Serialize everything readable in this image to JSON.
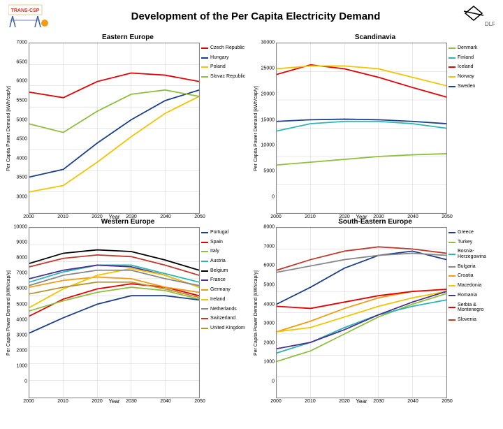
{
  "title": "Development of the Per Capita Electricity Demand",
  "logos": {
    "left_label": "TRANS-CSP",
    "left_colors": {
      "pylon": "#3b5ba5",
      "sun": "#f39c12",
      "text": "#c0392b"
    },
    "right_label": "DLR",
    "right_colors": {
      "shape": "#000000",
      "text": "#555555"
    }
  },
  "common": {
    "x_label": "Year",
    "y_label": "Per Capita Power Demand [kWh/cap/y]",
    "x_ticks": [
      2000,
      2010,
      2020,
      2030,
      2040,
      2050
    ],
    "grid_color": "#d0d0d0",
    "background_color": "#ffffff",
    "border_color": "#888888",
    "title_fontsize": 10,
    "axis_fontsize": 8,
    "tick_fontsize": 7,
    "legend_fontsize": 7,
    "line_width": 1.8
  },
  "charts": [
    {
      "title": "Eastern Europe",
      "ylim": [
        3000,
        7000
      ],
      "ytick_step": 500,
      "series": [
        {
          "name": "Czech Republic",
          "color": "#e60000",
          "points": [
            [
              2000,
              5850
            ],
            [
              2010,
              5720
            ],
            [
              2020,
              6100
            ],
            [
              2030,
              6300
            ],
            [
              2040,
              6250
            ],
            [
              2050,
              6100
            ]
          ]
        },
        {
          "name": "Hungary",
          "color": "#1b3f8b",
          "points": [
            [
              2000,
              3850
            ],
            [
              2010,
              4030
            ],
            [
              2020,
              4650
            ],
            [
              2030,
              5200
            ],
            [
              2040,
              5650
            ],
            [
              2050,
              5900
            ]
          ]
        },
        {
          "name": "Poland",
          "color": "#f5c400",
          "points": [
            [
              2000,
              3500
            ],
            [
              2010,
              3650
            ],
            [
              2020,
              4200
            ],
            [
              2030,
              4800
            ],
            [
              2040,
              5350
            ],
            [
              2050,
              5750
            ]
          ]
        },
        {
          "name": "Slovac Republic",
          "color": "#8fbf3f",
          "points": [
            [
              2000,
              5100
            ],
            [
              2010,
              4900
            ],
            [
              2020,
              5400
            ],
            [
              2030,
              5800
            ],
            [
              2040,
              5900
            ],
            [
              2050,
              5750
            ]
          ]
        }
      ]
    },
    {
      "title": "Scandinavia",
      "ylim": [
        0,
        30000
      ],
      "ytick_step": 5000,
      "series": [
        {
          "name": "Denmark",
          "color": "#8fbf3f",
          "points": [
            [
              2000,
              8500
            ],
            [
              2010,
              9000
            ],
            [
              2020,
              9500
            ],
            [
              2030,
              10000
            ],
            [
              2040,
              10300
            ],
            [
              2050,
              10500
            ]
          ]
        },
        {
          "name": "Finland",
          "color": "#2db5b5",
          "points": [
            [
              2000,
              14500
            ],
            [
              2010,
              15800
            ],
            [
              2020,
              16200
            ],
            [
              2030,
              16200
            ],
            [
              2040,
              15800
            ],
            [
              2050,
              15000
            ]
          ]
        },
        {
          "name": "Iceland",
          "color": "#e60000",
          "points": [
            [
              2000,
              24500
            ],
            [
              2010,
              26200
            ],
            [
              2020,
              25500
            ],
            [
              2030,
              24000
            ],
            [
              2040,
              22200
            ],
            [
              2050,
              20500
            ]
          ]
        },
        {
          "name": "Norway",
          "color": "#f5c400",
          "points": [
            [
              2000,
              25500
            ],
            [
              2010,
              26000
            ],
            [
              2020,
              26000
            ],
            [
              2030,
              25500
            ],
            [
              2040,
              24000
            ],
            [
              2050,
              22500
            ]
          ]
        },
        {
          "name": "Sweden",
          "color": "#1b3f8b",
          "points": [
            [
              2000,
              16200
            ],
            [
              2010,
              16500
            ],
            [
              2020,
              16600
            ],
            [
              2030,
              16500
            ],
            [
              2040,
              16200
            ],
            [
              2050,
              15800
            ]
          ]
        }
      ]
    },
    {
      "title": "Western Europe",
      "ylim": [
        0,
        10000
      ],
      "ytick_step": 1000,
      "series": [
        {
          "name": "Portugal",
          "color": "#1b3f8b",
          "points": [
            [
              2000,
              3800
            ],
            [
              2010,
              4700
            ],
            [
              2020,
              5500
            ],
            [
              2030,
              6000
            ],
            [
              2040,
              6000
            ],
            [
              2050,
              5750
            ]
          ]
        },
        {
          "name": "Spain",
          "color": "#e60000",
          "points": [
            [
              2000,
              4800
            ],
            [
              2010,
              5800
            ],
            [
              2020,
              6400
            ],
            [
              2030,
              6700
            ],
            [
              2040,
              6500
            ],
            [
              2050,
              6000
            ]
          ]
        },
        {
          "name": "Italy",
          "color": "#8fbf3f",
          "points": [
            [
              2000,
              5100
            ],
            [
              2010,
              5700
            ],
            [
              2020,
              6200
            ],
            [
              2030,
              6500
            ],
            [
              2040,
              6300
            ],
            [
              2050,
              5800
            ]
          ]
        },
        {
          "name": "Austria",
          "color": "#2db5b5",
          "points": [
            [
              2000,
              6800
            ],
            [
              2010,
              7400
            ],
            [
              2020,
              7800
            ],
            [
              2030,
              7800
            ],
            [
              2040,
              7300
            ],
            [
              2050,
              6800
            ]
          ]
        },
        {
          "name": "Belgium",
          "color": "#000000",
          "points": [
            [
              2000,
              7900
            ],
            [
              2010,
              8500
            ],
            [
              2020,
              8700
            ],
            [
              2030,
              8600
            ],
            [
              2040,
              8100
            ],
            [
              2050,
              7500
            ]
          ]
        },
        {
          "name": "France",
          "color": "#4a2f8f",
          "points": [
            [
              2000,
              7000
            ],
            [
              2010,
              7500
            ],
            [
              2020,
              7800
            ],
            [
              2030,
              7700
            ],
            [
              2040,
              7200
            ],
            [
              2050,
              6500
            ]
          ]
        },
        {
          "name": "Germany",
          "color": "#f39c12",
          "points": [
            [
              2000,
              6500
            ],
            [
              2010,
              6900
            ],
            [
              2020,
              7100
            ],
            [
              2030,
              7000
            ],
            [
              2040,
              6500
            ],
            [
              2050,
              6200
            ]
          ]
        },
        {
          "name": "Ireland",
          "color": "#f5c400",
          "points": [
            [
              2000,
              5300
            ],
            [
              2010,
              6400
            ],
            [
              2020,
              7200
            ],
            [
              2030,
              7600
            ],
            [
              2040,
              7200
            ],
            [
              2050,
              6500
            ]
          ]
        },
        {
          "name": "Netherlands",
          "color": "#888888",
          "points": [
            [
              2000,
              6600
            ],
            [
              2010,
              7200
            ],
            [
              2020,
              7500
            ],
            [
              2030,
              7500
            ],
            [
              2040,
              7000
            ],
            [
              2050,
              6600
            ]
          ]
        },
        {
          "name": "Switzerland",
          "color": "#c0392b",
          "points": [
            [
              2000,
              7700
            ],
            [
              2010,
              8200
            ],
            [
              2020,
              8400
            ],
            [
              2030,
              8300
            ],
            [
              2040,
              7800
            ],
            [
              2050,
              7200
            ]
          ]
        },
        {
          "name": "United Kingdom",
          "color": "#b59430",
          "points": [
            [
              2000,
              6100
            ],
            [
              2010,
              6500
            ],
            [
              2020,
              6800
            ],
            [
              2030,
              6800
            ],
            [
              2040,
              6400
            ],
            [
              2050,
              5900
            ]
          ]
        }
      ]
    },
    {
      "title": "South-Eastern Europe",
      "ylim": [
        0,
        8000
      ],
      "ytick_step": 1000,
      "series": [
        {
          "name": "Greece",
          "color": "#1b3f8b",
          "points": [
            [
              2000,
              4400
            ],
            [
              2010,
              5200
            ],
            [
              2020,
              6100
            ],
            [
              2030,
              6700
            ],
            [
              2040,
              6900
            ],
            [
              2050,
              6500
            ]
          ]
        },
        {
          "name": "Turkey",
          "color": "#8fbf3f",
          "points": [
            [
              2000,
              1700
            ],
            [
              2010,
              2200
            ],
            [
              2020,
              3000
            ],
            [
              2030,
              3800
            ],
            [
              2040,
              4400
            ],
            [
              2050,
              4900
            ]
          ]
        },
        {
          "name": "Bosnia-Herzegowina",
          "color": "#2db5b5",
          "points": [
            [
              2000,
              2100
            ],
            [
              2010,
              2600
            ],
            [
              2020,
              3300
            ],
            [
              2030,
              3900
            ],
            [
              2040,
              4300
            ],
            [
              2050,
              4600
            ]
          ]
        },
        {
          "name": "Bulgaria",
          "color": "#888888",
          "points": [
            [
              2000,
              5900
            ],
            [
              2010,
              6200
            ],
            [
              2020,
              6500
            ],
            [
              2030,
              6700
            ],
            [
              2040,
              6800
            ],
            [
              2050,
              6700
            ]
          ]
        },
        {
          "name": "Croatia",
          "color": "#f39c12",
          "points": [
            [
              2000,
              3100
            ],
            [
              2010,
              3600
            ],
            [
              2020,
              4200
            ],
            [
              2030,
              4700
            ],
            [
              2040,
              5000
            ],
            [
              2050,
              5100
            ]
          ]
        },
        {
          "name": "Macedonia",
          "color": "#f5c400",
          "points": [
            [
              2000,
              3100
            ],
            [
              2010,
              3300
            ],
            [
              2020,
              3800
            ],
            [
              2030,
              4300
            ],
            [
              2040,
              4700
            ],
            [
              2050,
              5000
            ]
          ]
        },
        {
          "name": "Romania",
          "color": "#4a2f8f",
          "points": [
            [
              2000,
              2300
            ],
            [
              2010,
              2600
            ],
            [
              2020,
              3200
            ],
            [
              2030,
              3900
            ],
            [
              2040,
              4500
            ],
            [
              2050,
              5000
            ]
          ]
        },
        {
          "name": "Serbia & Montenegro",
          "color": "#e60000",
          "points": [
            [
              2000,
              4300
            ],
            [
              2010,
              4200
            ],
            [
              2020,
              4500
            ],
            [
              2030,
              4800
            ],
            [
              2040,
              5000
            ],
            [
              2050,
              5100
            ]
          ]
        },
        {
          "name": "Slovenia",
          "color": "#c0392b",
          "points": [
            [
              2000,
              6000
            ],
            [
              2010,
              6500
            ],
            [
              2020,
              6900
            ],
            [
              2030,
              7100
            ],
            [
              2040,
              7000
            ],
            [
              2050,
              6800
            ]
          ]
        }
      ]
    }
  ]
}
